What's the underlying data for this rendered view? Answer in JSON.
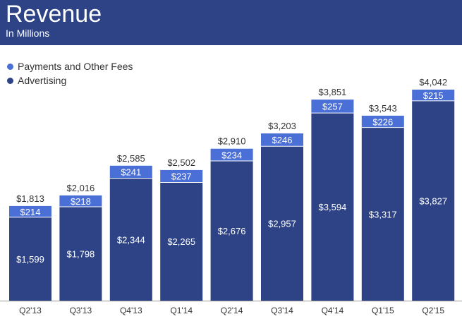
{
  "chart_data": {
    "type": "bar",
    "stacked": true,
    "title": "Revenue",
    "subtitle": "In Millions",
    "categories": [
      "Q2'13",
      "Q3'13",
      "Q4'13",
      "Q1'14",
      "Q2'14",
      "Q3'14",
      "Q4'14",
      "Q1'15",
      "Q2'15"
    ],
    "series": [
      {
        "name": "Advertising",
        "color": "#2d4385",
        "values": [
          1599,
          1798,
          2344,
          2265,
          2676,
          2957,
          3594,
          3317,
          3827
        ],
        "labels": [
          "$1,599",
          "$1,798",
          "$2,344",
          "$2,265",
          "$2,676",
          "$2,957",
          "$3,594",
          "$3,317",
          "$3,827"
        ]
      },
      {
        "name": "Payments and Other Fees",
        "color": "#4a6fd6",
        "values": [
          214,
          218,
          241,
          237,
          234,
          246,
          257,
          226,
          215
        ],
        "labels": [
          "$214",
          "$218",
          "$241",
          "$237",
          "$234",
          "$246",
          "$257",
          "$226",
          "$215"
        ]
      }
    ],
    "totals": [
      1813,
      2016,
      2585,
      2502,
      2910,
      3203,
      3851,
      3543,
      4042
    ],
    "total_labels": [
      "$1,813",
      "$2,016",
      "$2,585",
      "$2,502",
      "$2,910",
      "$3,203",
      "$3,851",
      "$3,543",
      "$4,042"
    ],
    "legend": [
      {
        "name": "Payments and Other Fees",
        "color": "#4a6fd6"
      },
      {
        "name": "Advertising",
        "color": "#2d4385"
      }
    ],
    "xlabel": "",
    "ylabel": "",
    "ylim": [
      0,
      4042
    ],
    "grid": false,
    "legend_position": "top-left"
  }
}
